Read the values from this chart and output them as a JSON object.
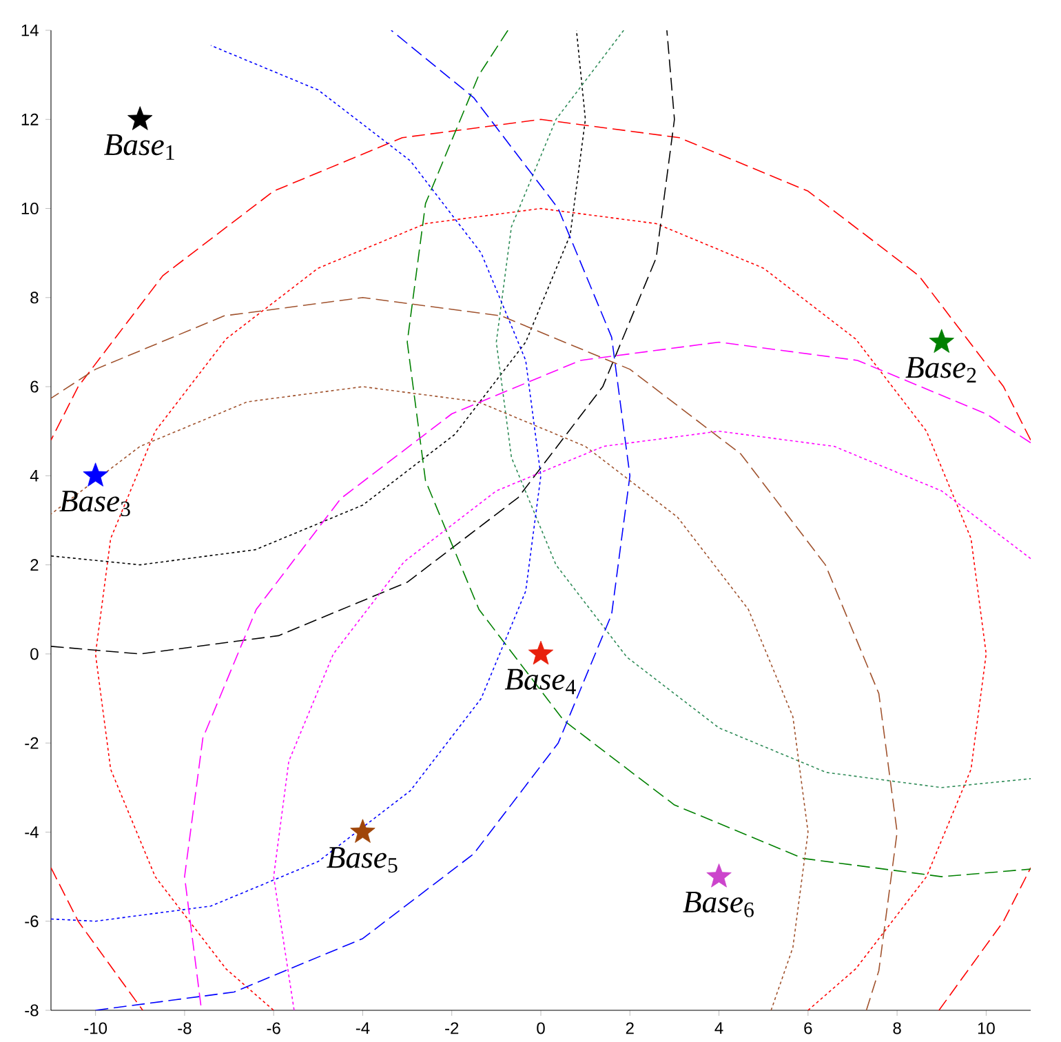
{
  "chart_data": {
    "type": "line",
    "xlim": [
      -11,
      11
    ],
    "ylim": [
      -8,
      14
    ],
    "xticks": [
      -10,
      -8,
      -6,
      -4,
      -2,
      0,
      2,
      4,
      6,
      8,
      10
    ],
    "yticks": [
      -8,
      -6,
      -4,
      -2,
      0,
      2,
      4,
      6,
      8,
      10,
      12,
      14
    ],
    "grid": false,
    "marker": "none",
    "annotations": [
      {
        "text": "*Base*$_{1}$",
        "x": -9,
        "y": 12
      },
      {
        "text": "*Base*$_{2}$",
        "x": 9,
        "y": 7
      },
      {
        "text": "*Base*$_{3}$",
        "x": -10,
        "y": 4
      },
      {
        "text": "*Base*$_{4}$",
        "x": 0,
        "y": 0
      },
      {
        "text": "*Base*$_{5}$",
        "x": -4,
        "y": -4
      },
      {
        "text": "*Base*$_{6}$",
        "x": 4,
        "y": -5
      }
    ],
    "series": [
      {
        "color": "#ff0000",
        "line_style": "dashed",
        "x": [
          11,
          10.39,
          8.49,
          6,
          3.11,
          0,
          -3.11,
          -6,
          -8.49,
          -10.39,
          -11,
          null,
          -11,
          -10.39,
          -8.94,
          null,
          8.94,
          10.39,
          11
        ],
        "values": [
          4.8,
          6,
          8.49,
          10.39,
          11.59,
          12,
          11.59,
          10.39,
          8.49,
          6,
          4.8,
          null,
          -4.8,
          -6,
          -8,
          null,
          -8,
          -6,
          -4.8
        ]
      },
      {
        "color": "#ff0000",
        "line_style": "dotted",
        "x": [
          6,
          7.07,
          8.66,
          9.66,
          10,
          9.66,
          8.66,
          7.07,
          5,
          2.59,
          0,
          -2.59,
          -5,
          -7.07,
          -8.66,
          -9.66,
          -10,
          -9.66,
          -8.66,
          -7.07,
          -6
        ],
        "values": [
          -8,
          -7.07,
          -5,
          -2.59,
          0,
          2.59,
          5,
          7.07,
          8.66,
          9.66,
          10,
          9.66,
          8.66,
          7.07,
          5,
          2.59,
          0,
          -2.59,
          -5,
          -7.07,
          -8
        ]
      },
      {
        "color": "#000000",
        "line_style": "dashed",
        "x": [
          -11,
          -9,
          -5.89,
          -3,
          -0.51,
          1.39,
          2.59,
          3,
          2.83
        ],
        "values": [
          0.17,
          0,
          0.41,
          1.61,
          3.51,
          6,
          8.89,
          12,
          14
        ]
      },
      {
        "color": "#000000",
        "line_style": "dotted",
        "x": [
          -11,
          -9,
          -6.41,
          -4,
          -1.93,
          -0.34,
          0.66,
          1,
          0.8
        ],
        "values": [
          2.2,
          2,
          2.34,
          3.34,
          4.93,
          7,
          9.41,
          12,
          14
        ]
      },
      {
        "color": "#008000",
        "line_style": "dashed",
        "x": [
          -0.74,
          -1.39,
          -2.59,
          -3,
          -2.59,
          -1.39,
          0.51,
          3,
          5.89,
          9,
          11
        ],
        "values": [
          14,
          13,
          10.11,
          7,
          3.89,
          1,
          -1.49,
          -3.39,
          -4.59,
          -5,
          -4.83
        ]
      },
      {
        "color": "#2e8b57",
        "line_style": "dotted",
        "x": [
          1.86,
          0.34,
          -0.66,
          -1,
          -0.66,
          0.34,
          1.93,
          4,
          6.41,
          9,
          11
        ],
        "values": [
          14,
          12,
          9.59,
          7,
          4.41,
          2,
          -0.07,
          -1.66,
          -2.66,
          -3,
          -2.8
        ]
      },
      {
        "color": "#0000ff",
        "line_style": "dashed",
        "x": [
          -10,
          -6.89,
          -4,
          -1.51,
          0.39,
          1.59,
          2,
          1.59,
          0.39,
          -1.51,
          -3.36
        ],
        "values": [
          -8,
          -7.59,
          -6.39,
          -4.49,
          -2,
          0.89,
          4,
          7.11,
          10,
          12.49,
          14
        ]
      },
      {
        "color": "#0000ff",
        "line_style": "dotted",
        "x": [
          -11,
          -10,
          -7.41,
          -5,
          -2.93,
          -1.34,
          -0.34,
          0,
          -0.34,
          -1.34,
          -2.93,
          -5,
          -7.41
        ],
        "values": [
          -5.95,
          -6,
          -5.66,
          -4.66,
          -3.07,
          -1,
          1.41,
          4,
          6.59,
          9,
          11.07,
          12.66,
          13.66
        ]
      },
      {
        "color": "#a0522d",
        "line_style": "dashed",
        "x": [
          7.31,
          7.59,
          8,
          7.59,
          6.39,
          4.49,
          2,
          -0.89,
          -4,
          -7.11,
          -10,
          -11
        ],
        "values": [
          -8,
          -7.11,
          -4,
          -0.89,
          2,
          4.49,
          6.39,
          7.59,
          8,
          7.59,
          6.39,
          5.74
        ]
      },
      {
        "color": "#a0522d",
        "line_style": "dotted",
        "x": [
          5.17,
          5.66,
          6,
          5.66,
          4.66,
          3.07,
          1,
          -1.41,
          -4,
          -6.59,
          -9,
          -11
        ],
        "values": [
          -8,
          -6.59,
          -4,
          -1.41,
          1,
          3.07,
          4.66,
          5.66,
          6,
          5.66,
          4.66,
          3.14
        ]
      },
      {
        "color": "#ff00ff",
        "line_style": "dashed",
        "x": [
          11,
          10,
          7.11,
          4,
          0.89,
          -2,
          -4.49,
          -6.39,
          -7.59,
          -8,
          -7.62
        ],
        "values": [
          4.74,
          5.39,
          6.59,
          7,
          6.59,
          5.39,
          3.49,
          1,
          -1.89,
          -5,
          -8
        ]
      },
      {
        "color": "#ff00ff",
        "line_style": "dotted",
        "x": [
          11,
          9,
          6.59,
          4,
          1.41,
          -1,
          -3.07,
          -4.66,
          -5.66,
          -6,
          -5.54
        ],
        "values": [
          2.14,
          3.66,
          4.66,
          5,
          4.66,
          3.66,
          2.07,
          0,
          -2.41,
          -5,
          -8
        ]
      },
      {
        "type": "scatter",
        "marker": "star",
        "color": "#000000",
        "x": [
          -9
        ],
        "values": [
          12
        ]
      },
      {
        "type": "scatter",
        "marker": "star",
        "color": "#008000",
        "x": [
          9
        ],
        "values": [
          7
        ]
      },
      {
        "type": "scatter",
        "marker": "star",
        "color": "#0000ff",
        "x": [
          -10
        ],
        "values": [
          4
        ]
      },
      {
        "type": "scatter",
        "marker": "star",
        "color": "#e8200c",
        "x": [
          0
        ],
        "values": [
          0
        ]
      },
      {
        "type": "scatter",
        "marker": "star",
        "color": "#a0460a",
        "x": [
          -4
        ],
        "values": [
          -4
        ]
      },
      {
        "type": "scatter",
        "marker": "star",
        "color": "#cc44cc",
        "x": [
          4
        ],
        "values": [
          -5
        ]
      }
    ]
  }
}
